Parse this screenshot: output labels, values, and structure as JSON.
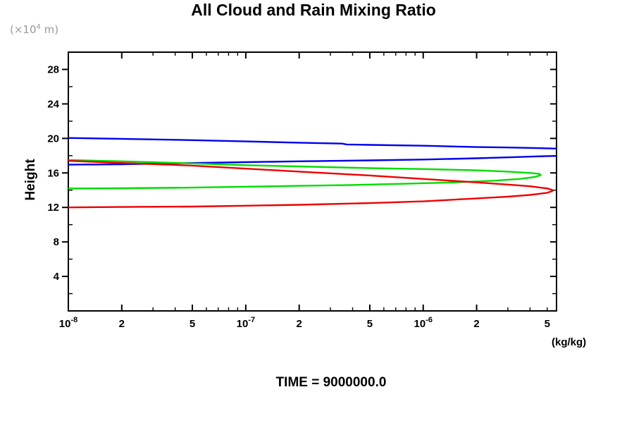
{
  "title": "All Cloud and Rain Mixing Ratio",
  "y_axis_unit": {
    "prefix": "(×10",
    "sup": "4",
    "suffix": " m)"
  },
  "y_axis_label": "Height",
  "x_axis_unit": "(kg/kg)",
  "caption": "TIME = 9000000.0",
  "colors": {
    "axis": "#000000",
    "unit_text": "#9a9a9a",
    "blue": "#0000ee",
    "green": "#00dd00",
    "red": "#ee0000"
  },
  "chart_data": {
    "type": "line",
    "title": "All Cloud and Rain Mixing Ratio",
    "xlabel": "(kg/kg)",
    "ylabel": "Height (×10^4 m)",
    "x_scale": "log",
    "xlim": [
      1e-08,
      5.64e-06
    ],
    "ylim": [
      0,
      30
    ],
    "grid": false,
    "legend": "none",
    "x_ticks": [
      {
        "v": 1e-08,
        "base": "10",
        "exp": "-8"
      },
      {
        "v": 2e-08,
        "label": "2"
      },
      {
        "v": 5e-08,
        "label": "5"
      },
      {
        "v": 1e-07,
        "base": "10",
        "exp": "-7"
      },
      {
        "v": 2e-07,
        "label": "2"
      },
      {
        "v": 5e-07,
        "label": "5"
      },
      {
        "v": 1e-06,
        "base": "10",
        "exp": "-6"
      },
      {
        "v": 2e-06,
        "label": "2"
      },
      {
        "v": 5e-06,
        "label": "5"
      }
    ],
    "y_major_ticks": [
      4,
      8,
      12,
      16,
      20,
      24,
      28
    ],
    "y_minor_ticks": [
      2,
      6,
      10,
      14,
      18,
      22,
      26,
      30
    ],
    "series": [
      {
        "name": "blue-profile",
        "color": "#0000ee",
        "points": [
          [
            1e-08,
            20.05
          ],
          [
            2e-08,
            19.95
          ],
          [
            5e-08,
            19.8
          ],
          [
            1e-07,
            19.65
          ],
          [
            2e-07,
            19.5
          ],
          [
            3.5e-07,
            19.4
          ],
          [
            3.7e-07,
            19.3
          ],
          [
            5e-07,
            19.25
          ],
          [
            1e-06,
            19.15
          ],
          [
            2e-06,
            19.0
          ],
          [
            3e-06,
            18.95
          ],
          [
            5e-06,
            18.85
          ],
          [
            7e-06,
            18.75
          ],
          [
            8e-06,
            18.3
          ],
          [
            7e-06,
            18.0
          ],
          [
            5e-06,
            17.95
          ],
          [
            3e-06,
            17.8
          ],
          [
            2e-06,
            17.7
          ],
          [
            1e-06,
            17.55
          ],
          [
            5e-07,
            17.45
          ],
          [
            2e-07,
            17.35
          ],
          [
            1e-07,
            17.25
          ],
          [
            5e-08,
            17.15
          ],
          [
            2e-08,
            17.0
          ],
          [
            1e-08,
            16.95
          ]
        ]
      },
      {
        "name": "green-profile",
        "color": "#00dd00",
        "points": [
          [
            1e-08,
            17.5
          ],
          [
            2e-08,
            17.35
          ],
          [
            5e-08,
            17.1
          ],
          [
            1e-07,
            16.9
          ],
          [
            2e-07,
            16.75
          ],
          [
            5e-07,
            16.55
          ],
          [
            1e-06,
            16.45
          ],
          [
            2e-06,
            16.3
          ],
          [
            3e-06,
            16.15
          ],
          [
            4e-06,
            16.0
          ],
          [
            4.5e-06,
            15.9
          ],
          [
            4.6e-06,
            15.75
          ],
          [
            4.3e-06,
            15.55
          ],
          [
            3.5e-06,
            15.3
          ],
          [
            2.5e-06,
            15.1
          ],
          [
            1.5e-06,
            14.9
          ],
          [
            8e-07,
            14.75
          ],
          [
            4e-07,
            14.6
          ],
          [
            2e-07,
            14.5
          ],
          [
            1e-07,
            14.4
          ],
          [
            5e-08,
            14.3
          ],
          [
            2e-08,
            14.22
          ],
          [
            1e-08,
            14.2
          ]
        ]
      },
      {
        "name": "red-profile",
        "color": "#ee0000",
        "points": [
          [
            1e-08,
            17.4
          ],
          [
            2e-08,
            17.15
          ],
          [
            5e-08,
            16.85
          ],
          [
            1e-07,
            16.5
          ],
          [
            2e-07,
            16.15
          ],
          [
            5e-07,
            15.7
          ],
          [
            1e-06,
            15.3
          ],
          [
            2e-06,
            14.9
          ],
          [
            3e-06,
            14.65
          ],
          [
            4e-06,
            14.45
          ],
          [
            5e-06,
            14.2
          ],
          [
            5.3e-06,
            14.05
          ],
          [
            5.35e-06,
            13.9
          ],
          [
            5e-06,
            13.7
          ],
          [
            4e-06,
            13.45
          ],
          [
            3e-06,
            13.25
          ],
          [
            2e-06,
            13.05
          ],
          [
            1e-06,
            12.7
          ],
          [
            5e-07,
            12.5
          ],
          [
            2e-07,
            12.3
          ],
          [
            1e-07,
            12.2
          ],
          [
            5e-08,
            12.1
          ],
          [
            2e-08,
            12.05
          ],
          [
            1e-08,
            12.0
          ]
        ]
      }
    ]
  }
}
